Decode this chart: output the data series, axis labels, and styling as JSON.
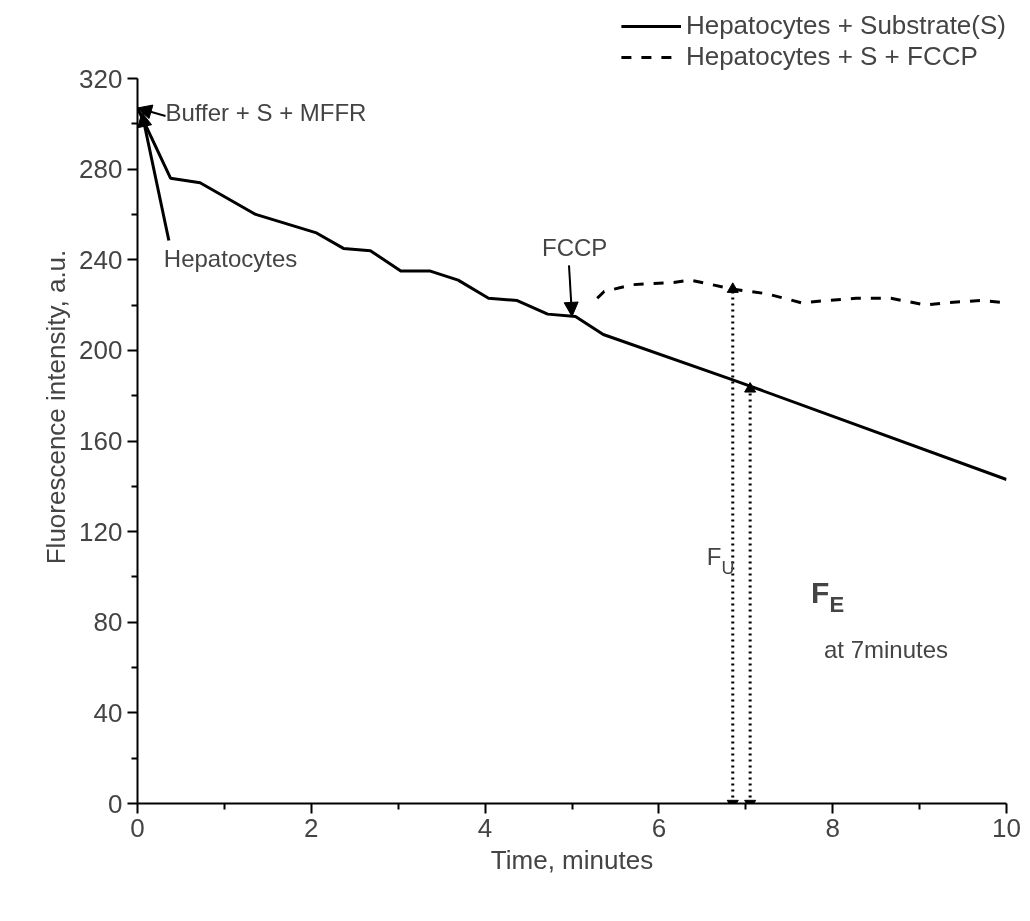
{
  "chart_data": {
    "type": "line",
    "xlabel": "Time, minutes",
    "ylabel": "Fluorescence intensity, a.u.",
    "xlim": [
      0,
      10
    ],
    "ylim": [
      0,
      320
    ],
    "xticks": [
      0,
      2,
      4,
      6,
      8,
      10
    ],
    "yticks": [
      0,
      40,
      80,
      120,
      160,
      200,
      240,
      280,
      320
    ],
    "grid": false,
    "legend": "top right",
    "marker": "none",
    "series": [
      {
        "name": "Hepatocytes + Substrate(S)",
        "color": "#000000",
        "line_style": "solid",
        "x": [
          0,
          0.38,
          0.72,
          1.36,
          2.05,
          2.37,
          2.68,
          3.03,
          3.37,
          3.69,
          4.04,
          4.37,
          4.72,
          5.04,
          5.36,
          6.85,
          10
        ],
        "values": [
          307,
          276,
          274,
          260,
          252,
          245,
          244,
          235,
          235,
          231,
          223,
          222,
          216,
          215,
          207,
          187,
          143
        ]
      },
      {
        "name": "Hepatocytes + S + FCCP",
        "color": "#000000",
        "line_style": "dashed",
        "x": [
          5.29,
          5.37,
          5.7,
          6.17,
          6.36,
          6.86,
          7.24,
          7.64,
          7.92,
          8.27,
          8.67,
          9.07,
          9.3,
          9.7,
          10
        ],
        "values": [
          223,
          226,
          229,
          230,
          231,
          227,
          225,
          221,
          222,
          223,
          223,
          220,
          221,
          222,
          221
        ]
      },
      {
        "color": "#000000",
        "line_style": "dotted",
        "marker": "triangle",
        "x": [
          6.85,
          6.85
        ],
        "values": [
          0,
          227
        ]
      },
      {
        "color": "#000000",
        "line_style": "dotted",
        "marker": "triangle",
        "x": [
          7.05,
          7.05
        ],
        "values": [
          0,
          183
        ]
      }
    ],
    "annotations": [
      {
        "text": "Buffer + S + MFFR",
        "x": 0,
        "y": 307
      },
      {
        "text": "Hepatocytes",
        "x": 0.05,
        "y": 305
      },
      {
        "text": "FCCP",
        "x": 5.0,
        "y": 215
      },
      "F$_{U}$",
      "F$_{E}$",
      "at 7minutes"
    ]
  }
}
